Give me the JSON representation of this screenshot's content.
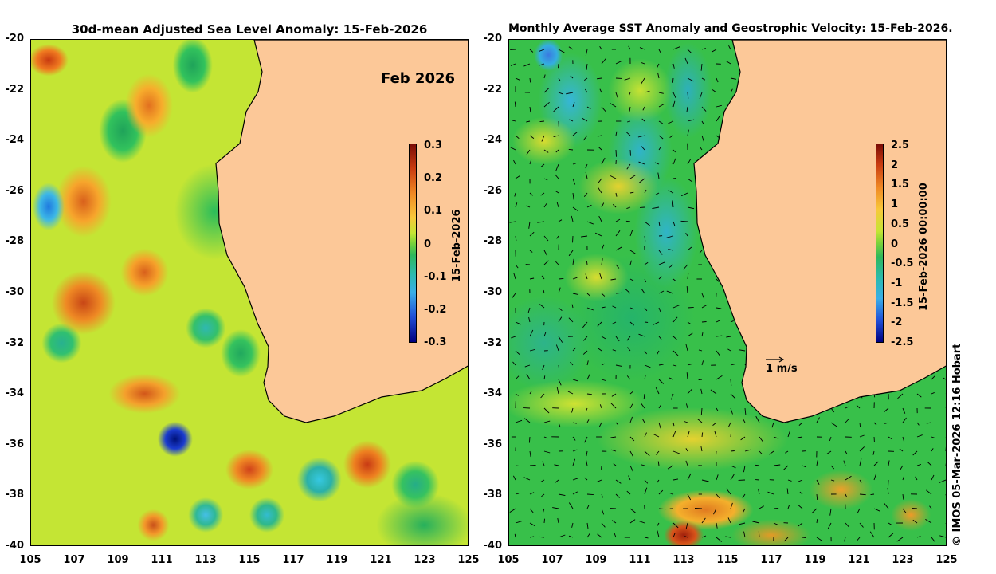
{
  "left_panel": {
    "title": "30d-mean Adjusted Sea Level Anomaly: 15-Feb-2026",
    "month_label": "Feb 2026",
    "colorbar": {
      "label": "15-Feb-2026",
      "ticks": [
        "0.3",
        "0.2",
        "0.1",
        "0",
        "-0.1",
        "-0.2",
        "-0.3"
      ],
      "range": [
        -0.3,
        0.3
      ]
    }
  },
  "right_panel": {
    "title": "Monthly Average SST Anomaly  and Geostrophic Velocity: 15-Feb-2026.",
    "scale_label": "1 m/s",
    "colorbar": {
      "label": "15-Feb-2026 00:00:00",
      "ticks": [
        "2.5",
        "2",
        "1.5",
        "1",
        "0.5",
        "0",
        "-0.5",
        "-1",
        "-1.5",
        "-2",
        "-2.5"
      ],
      "range": [
        -2.5,
        2.5
      ]
    }
  },
  "axes": {
    "y_ticks": [
      "-20",
      "-22",
      "-24",
      "-26",
      "-28",
      "-30",
      "-32",
      "-34",
      "-36",
      "-38",
      "-40"
    ],
    "x_ticks": [
      "105",
      "107",
      "109",
      "111",
      "113",
      "115",
      "117",
      "119",
      "121",
      "123",
      "125"
    ],
    "lat_range": [
      -40,
      -20
    ],
    "lon_range": [
      105,
      125
    ]
  },
  "credit": "© IMOS 05-Mar-2026 12:16 Hobart",
  "colors": {
    "land": "#fcc898",
    "coast": "#000000"
  }
}
